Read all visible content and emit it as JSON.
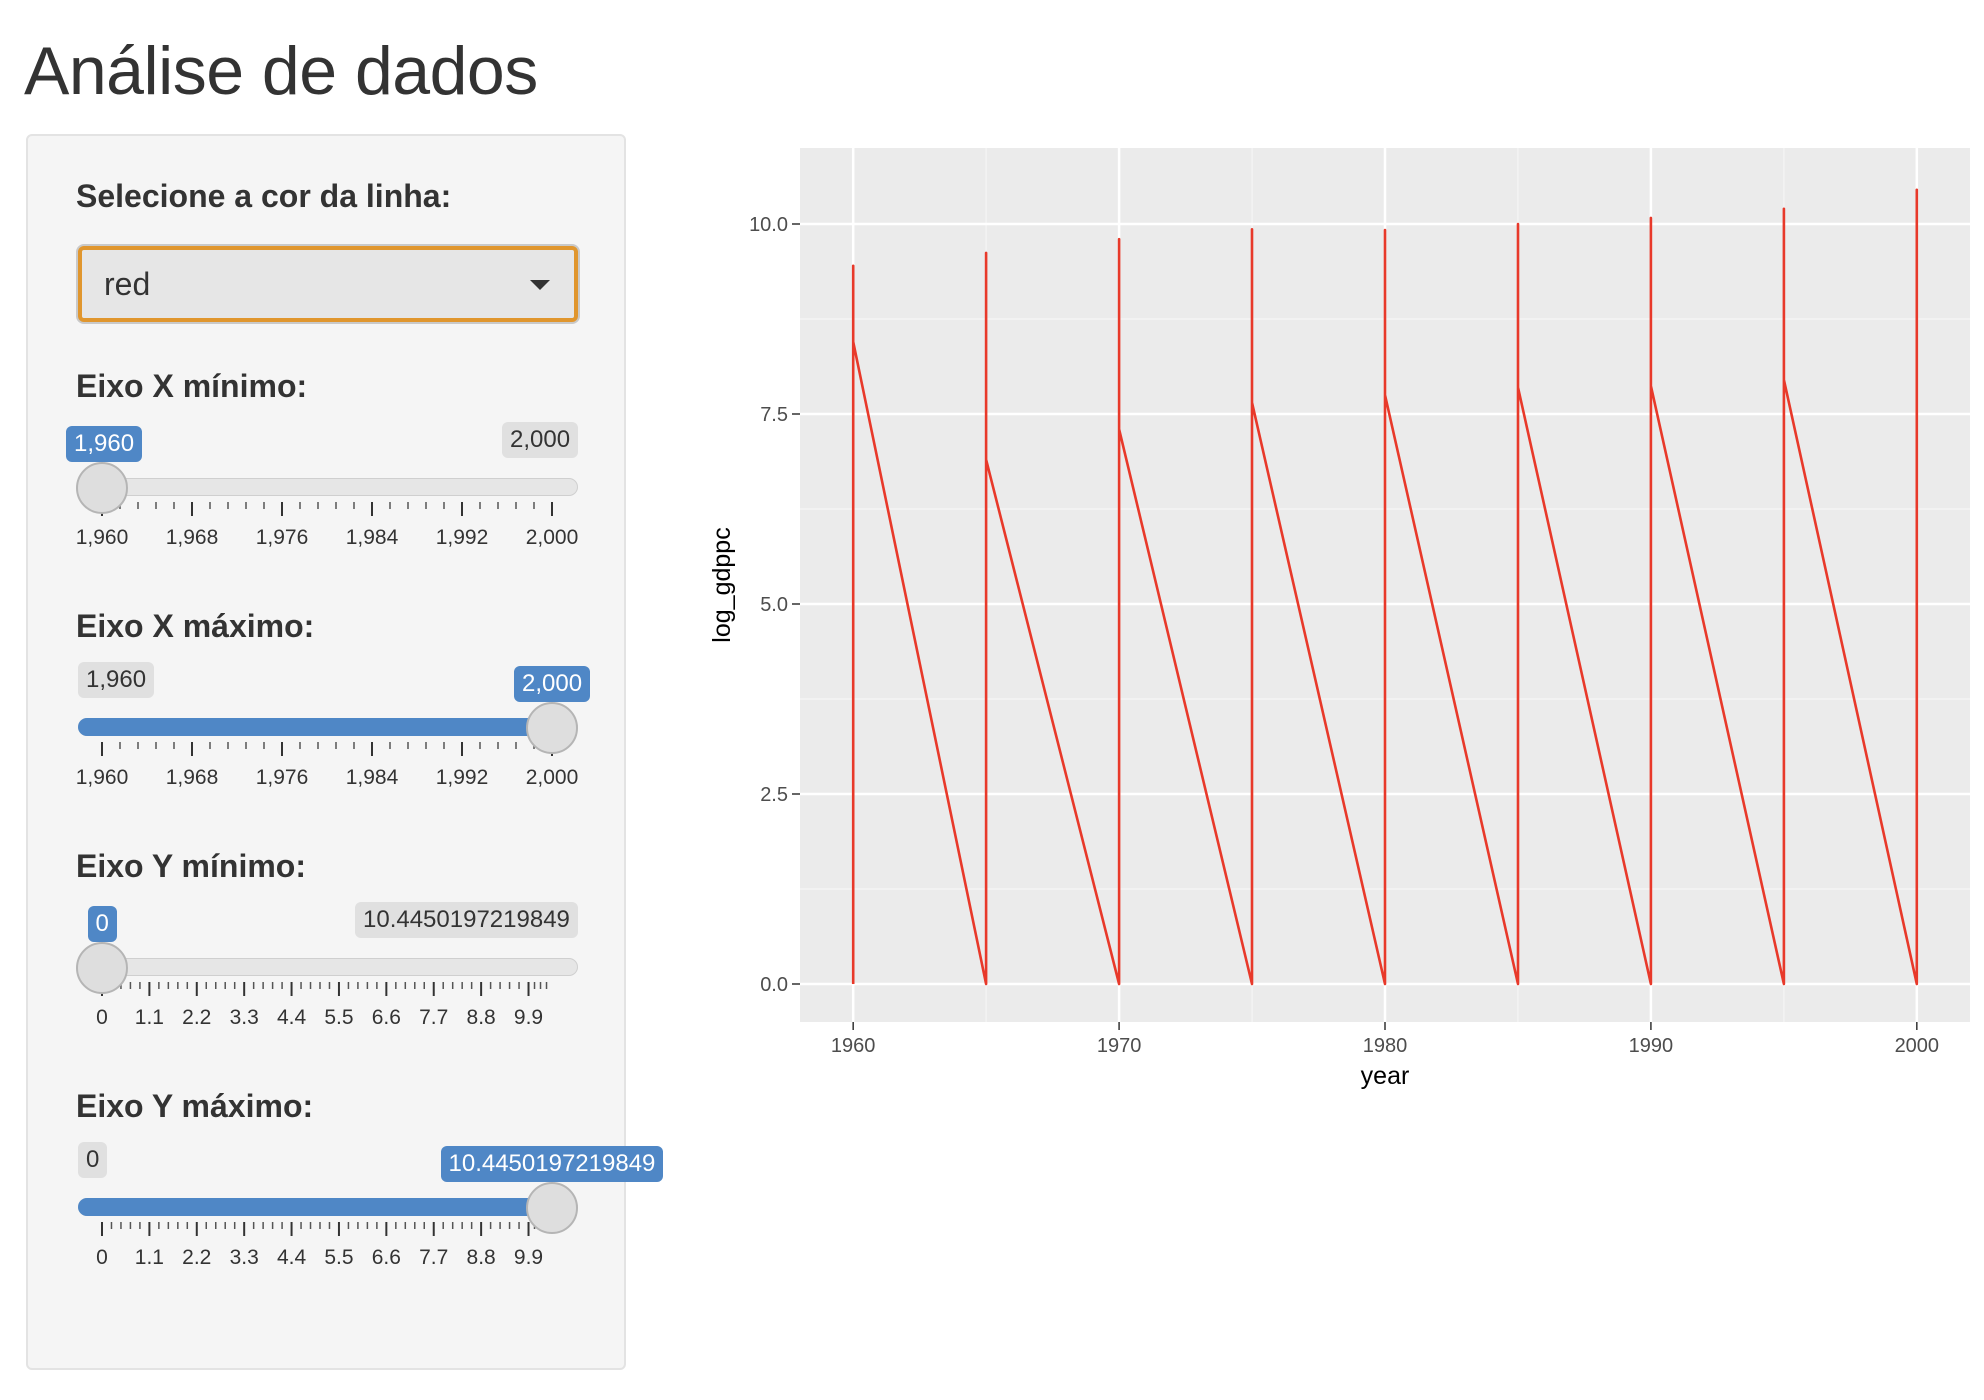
{
  "page": {
    "title": "Análise de dados"
  },
  "sidebar": {
    "color_select": {
      "label": "Selecione a cor da linha:",
      "value": "red"
    },
    "sliders": [
      {
        "label": "Eixo X mínimo:",
        "min_label": "1,960",
        "max_label": "2,000",
        "from_label": "1,960",
        "to_label": null,
        "min": 1960,
        "max": 2000,
        "value": 1960,
        "type": "single",
        "ticks": [
          "1,960",
          "1,968",
          "1,976",
          "1,984",
          "1,992",
          "2,000"
        ]
      },
      {
        "label": "Eixo X máximo:",
        "min_label": "1,960",
        "max_label": "2,000",
        "from_label": "2,000",
        "to_label": null,
        "min": 1960,
        "max": 2000,
        "value": 2000,
        "type": "single",
        "ticks": [
          "1,960",
          "1,968",
          "1,976",
          "1,984",
          "1,992",
          "2,000"
        ]
      },
      {
        "label": "Eixo Y mínimo:",
        "min_label": "0",
        "max_label": "10.4450197219849",
        "from_label": "0",
        "to_label": null,
        "min": 0,
        "max": 10.4450197219849,
        "value": 0,
        "type": "single",
        "ticks": [
          "0",
          "1.1",
          "2.2",
          "3.3",
          "4.4",
          "5.5",
          "6.6",
          "7.7",
          "8.8",
          "9.9"
        ]
      },
      {
        "label": "Eixo Y máximo:",
        "min_label": "0",
        "max_label": "10.4450197219849",
        "from_label": "10.4450197219849",
        "to_label": null,
        "min": 0,
        "max": 10.4450197219849,
        "value": 10.4450197219849,
        "type": "single",
        "ticks": [
          "0",
          "1.1",
          "2.2",
          "3.3",
          "4.4",
          "5.5",
          "6.6",
          "7.7",
          "8.8",
          "9.9"
        ]
      }
    ]
  },
  "colors": {
    "accent": "#4f87c6",
    "select_focus": "#e0962e",
    "line": "#e8392a",
    "panel_bg": "#ebebeb"
  },
  "chart_data": {
    "type": "line",
    "title": "",
    "xlabel": "year",
    "ylabel": "log_gdppc",
    "xlim": [
      1958,
      2002
    ],
    "ylim": [
      -0.5,
      11
    ],
    "x_ticks": [
      1960,
      1970,
      1980,
      1990,
      2000
    ],
    "y_ticks": [
      0.0,
      2.5,
      5.0,
      7.5,
      10.0
    ],
    "y_tick_labels": [
      "0.0",
      "2.5",
      "5.0",
      "7.5",
      "10.0"
    ],
    "grid": true,
    "series": [
      {
        "x": [
          1960,
          1960,
          1960,
          1965,
          1965,
          1965,
          1970,
          1970,
          1970,
          1975,
          1975,
          1975,
          1980,
          1980,
          1980,
          1985,
          1985,
          1985,
          1990,
          1990,
          1990,
          1995,
          1995,
          1995,
          2000,
          2000,
          2000
        ],
        "y": [
          0,
          9.45,
          8.45,
          0,
          9.62,
          6.9,
          0,
          9.8,
          7.3,
          0,
          9.93,
          7.65,
          0,
          9.92,
          7.75,
          0,
          10.0,
          7.85,
          0,
          10.08,
          7.87,
          0,
          10.2,
          7.95,
          0,
          10.45,
          0
        ]
      }
    ]
  }
}
